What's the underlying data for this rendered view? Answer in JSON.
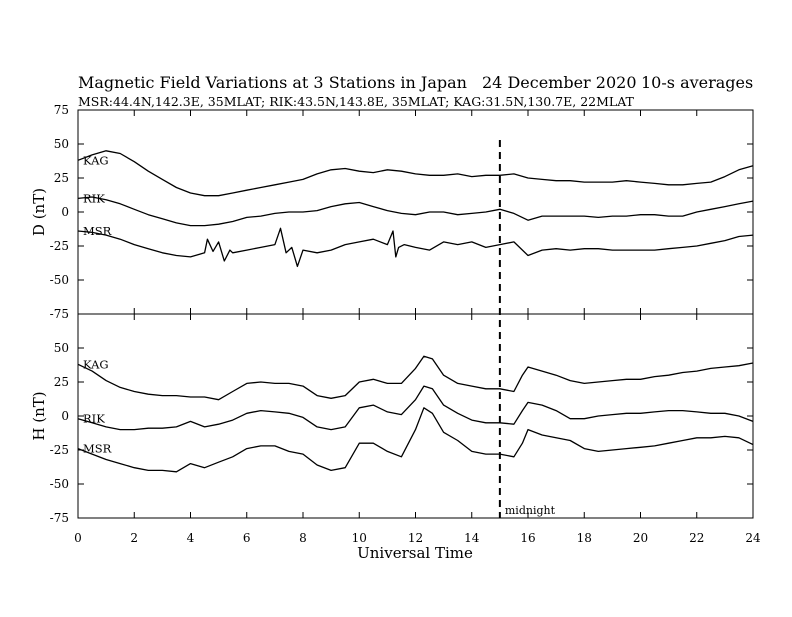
{
  "header": {
    "title": "Magnetic Field Variations at 3 Stations in Japan",
    "date": "24 December 2020",
    "averaging": "10-s averages",
    "stations": "MSR:44.4N,142.3E, 35MLAT;  RIK:43.5N,143.8E, 35MLAT;  KAG:31.5N,130.7E, 22MLAT"
  },
  "chart_data": {
    "type": "line",
    "x_axis": {
      "label": "Universal Time",
      "range": [
        0,
        24
      ],
      "ticks": [
        0,
        2,
        4,
        6,
        8,
        10,
        12,
        14,
        16,
        18,
        20,
        22,
        24
      ],
      "tick_labels": [
        "0",
        "2",
        "4",
        "6",
        "8",
        "10",
        "12",
        "14",
        "16",
        "18",
        "20",
        "22",
        "24"
      ]
    },
    "marker": {
      "x": 15,
      "label": "midnight",
      "style": "dashed"
    },
    "panels": [
      {
        "ylabel": "D (nT)",
        "ylim": [
          -75,
          75
        ],
        "yticks": [
          75,
          50,
          25,
          0,
          -25,
          -50,
          -75
        ],
        "ytick_labels": [
          "75",
          "50",
          "25",
          "0",
          "-25",
          "-50",
          "-75"
        ],
        "series": [
          {
            "name": "KAG",
            "x": [
              0,
              0.5,
              1,
              1.5,
              2,
              2.5,
              3,
              3.5,
              4,
              4.5,
              5,
              5.5,
              6,
              6.5,
              7,
              7.5,
              8,
              8.5,
              9,
              9.5,
              10,
              10.5,
              11,
              11.5,
              12,
              12.5,
              13,
              13.5,
              14,
              14.5,
              15,
              15.5,
              16,
              16.5,
              17,
              17.5,
              18,
              18.5,
              19,
              19.5,
              20,
              20.5,
              21,
              21.5,
              22,
              22.5,
              23,
              23.5,
              24
            ],
            "values": [
              38,
              42,
              45,
              43,
              37,
              30,
              24,
              18,
              14,
              12,
              12,
              14,
              16,
              18,
              20,
              22,
              24,
              28,
              31,
              32,
              30,
              29,
              31,
              30,
              28,
              27,
              27,
              28,
              26,
              27,
              27,
              28,
              25,
              24,
              23,
              23,
              22,
              22,
              22,
              23,
              22,
              21,
              20,
              20,
              21,
              22,
              26,
              31,
              34
            ]
          },
          {
            "name": "RIK",
            "x": [
              0,
              0.5,
              1,
              1.5,
              2,
              2.5,
              3,
              3.5,
              4,
              4.5,
              5,
              5.5,
              6,
              6.5,
              7,
              7.5,
              8,
              8.5,
              9,
              9.5,
              10,
              10.5,
              11,
              11.5,
              12,
              12.5,
              13,
              13.5,
              14,
              14.5,
              15,
              15.5,
              16,
              16.5,
              17,
              17.5,
              18,
              18.5,
              19,
              19.5,
              20,
              20.5,
              21,
              21.5,
              22,
              22.5,
              23,
              23.5,
              24
            ],
            "values": [
              10,
              11,
              9,
              6,
              2,
              -2,
              -5,
              -8,
              -10,
              -10,
              -9,
              -7,
              -4,
              -3,
              -1,
              0,
              0,
              1,
              4,
              6,
              7,
              4,
              1,
              -1,
              -2,
              0,
              0,
              -2,
              -1,
              0,
              2,
              -1,
              -6,
              -3,
              -3,
              -3,
              -3,
              -4,
              -3,
              -3,
              -2,
              -2,
              -3,
              -3,
              0,
              2,
              4,
              6,
              8
            ]
          },
          {
            "name": "MSR",
            "x": [
              0,
              0.5,
              1,
              1.5,
              2,
              2.5,
              3,
              3.5,
              4,
              4.5,
              4.6,
              4.8,
              5,
              5.2,
              5.4,
              5.5,
              6,
              6.5,
              7,
              7.2,
              7.4,
              7.6,
              7.8,
              8,
              8.5,
              9,
              9.5,
              10,
              10.5,
              11,
              11.2,
              11.3,
              11.4,
              11.6,
              12,
              12.5,
              13,
              13.5,
              14,
              14.5,
              15,
              15.5,
              16,
              16.5,
              17,
              17.5,
              18,
              18.5,
              19,
              19.5,
              20,
              20.5,
              21,
              21.5,
              22,
              22.5,
              23,
              23.5,
              24
            ],
            "values": [
              -14,
              -15,
              -17,
              -20,
              -24,
              -27,
              -30,
              -32,
              -33,
              -30,
              -20,
              -29,
              -22,
              -36,
              -28,
              -30,
              -28,
              -26,
              -24,
              -12,
              -30,
              -26,
              -40,
              -28,
              -30,
              -28,
              -24,
              -22,
              -20,
              -24,
              -14,
              -33,
              -26,
              -24,
              -26,
              -28,
              -22,
              -24,
              -22,
              -26,
              -24,
              -22,
              -32,
              -28,
              -27,
              -28,
              -27,
              -27,
              -28,
              -28,
              -28,
              -28,
              -27,
              -26,
              -25,
              -23,
              -21,
              -18,
              -17
            ]
          }
        ]
      },
      {
        "ylabel": "H (nT)",
        "ylim": [
          -75,
          75
        ],
        "yticks": [
          50,
          25,
          0,
          -25,
          -50,
          -75
        ],
        "ytick_labels": [
          "50",
          "25",
          "0",
          "-25",
          "-50",
          "-75"
        ],
        "series": [
          {
            "name": "KAG",
            "x": [
              0,
              0.5,
              1,
              1.5,
              2,
              2.5,
              3,
              3.5,
              4,
              4.5,
              5,
              5.5,
              6,
              6.5,
              7,
              7.5,
              8,
              8.5,
              9,
              9.5,
              10,
              10.5,
              11,
              11.5,
              12,
              12.3,
              12.6,
              13,
              13.5,
              14,
              14.5,
              15,
              15.5,
              15.8,
              16,
              16.5,
              17,
              17.5,
              18,
              18.5,
              19,
              19.5,
              20,
              20.5,
              21,
              21.5,
              22,
              22.5,
              23,
              23.5,
              24
            ],
            "values": [
              38,
              33,
              26,
              21,
              18,
              16,
              15,
              15,
              14,
              14,
              12,
              18,
              24,
              25,
              24,
              24,
              22,
              15,
              13,
              15,
              25,
              27,
              24,
              24,
              35,
              44,
              42,
              30,
              24,
              22,
              20,
              20,
              18,
              30,
              36,
              33,
              30,
              26,
              24,
              25,
              26,
              27,
              27,
              29,
              30,
              32,
              33,
              35,
              36,
              37,
              39
            ]
          },
          {
            "name": "RIK",
            "x": [
              0,
              0.5,
              1,
              1.5,
              2,
              2.5,
              3,
              3.5,
              4,
              4.5,
              5,
              5.5,
              6,
              6.5,
              7,
              7.5,
              8,
              8.5,
              9,
              9.5,
              10,
              10.5,
              11,
              11.5,
              12,
              12.3,
              12.6,
              13,
              13.5,
              14,
              14.5,
              15,
              15.5,
              15.8,
              16,
              16.5,
              17,
              17.5,
              18,
              18.5,
              19,
              19.5,
              20,
              20.5,
              21,
              21.5,
              22,
              22.5,
              23,
              23.5,
              24
            ],
            "values": [
              -2,
              -5,
              -8,
              -10,
              -10,
              -9,
              -9,
              -8,
              -4,
              -8,
              -6,
              -3,
              2,
              4,
              3,
              2,
              -1,
              -8,
              -10,
              -8,
              6,
              8,
              3,
              1,
              12,
              22,
              20,
              8,
              2,
              -3,
              -5,
              -5,
              -6,
              4,
              10,
              8,
              4,
              -2,
              -2,
              0,
              1,
              2,
              2,
              3,
              4,
              4,
              3,
              2,
              2,
              0,
              -4
            ]
          },
          {
            "name": "MSR",
            "x": [
              0,
              0.5,
              1,
              1.5,
              2,
              2.5,
              3,
              3.5,
              4,
              4.5,
              5,
              5.5,
              6,
              6.5,
              7,
              7.5,
              8,
              8.5,
              9,
              9.5,
              10,
              10.5,
              11,
              11.5,
              12,
              12.3,
              12.6,
              13,
              13.5,
              14,
              14.5,
              15,
              15.5,
              15.8,
              16,
              16.5,
              17,
              17.5,
              18,
              18.5,
              19,
              19.5,
              20,
              20.5,
              21,
              21.5,
              22,
              22.5,
              23,
              23.5,
              24
            ],
            "values": [
              -24,
              -28,
              -32,
              -35,
              -38,
              -40,
              -40,
              -41,
              -35,
              -38,
              -34,
              -30,
              -24,
              -22,
              -22,
              -26,
              -28,
              -36,
              -40,
              -38,
              -20,
              -20,
              -26,
              -30,
              -10,
              6,
              2,
              -12,
              -18,
              -26,
              -28,
              -28,
              -30,
              -20,
              -10,
              -14,
              -16,
              -18,
              -24,
              -26,
              -25,
              -24,
              -23,
              -22,
              -20,
              -18,
              -16,
              -16,
              -15,
              -16,
              -21
            ]
          }
        ]
      }
    ]
  }
}
